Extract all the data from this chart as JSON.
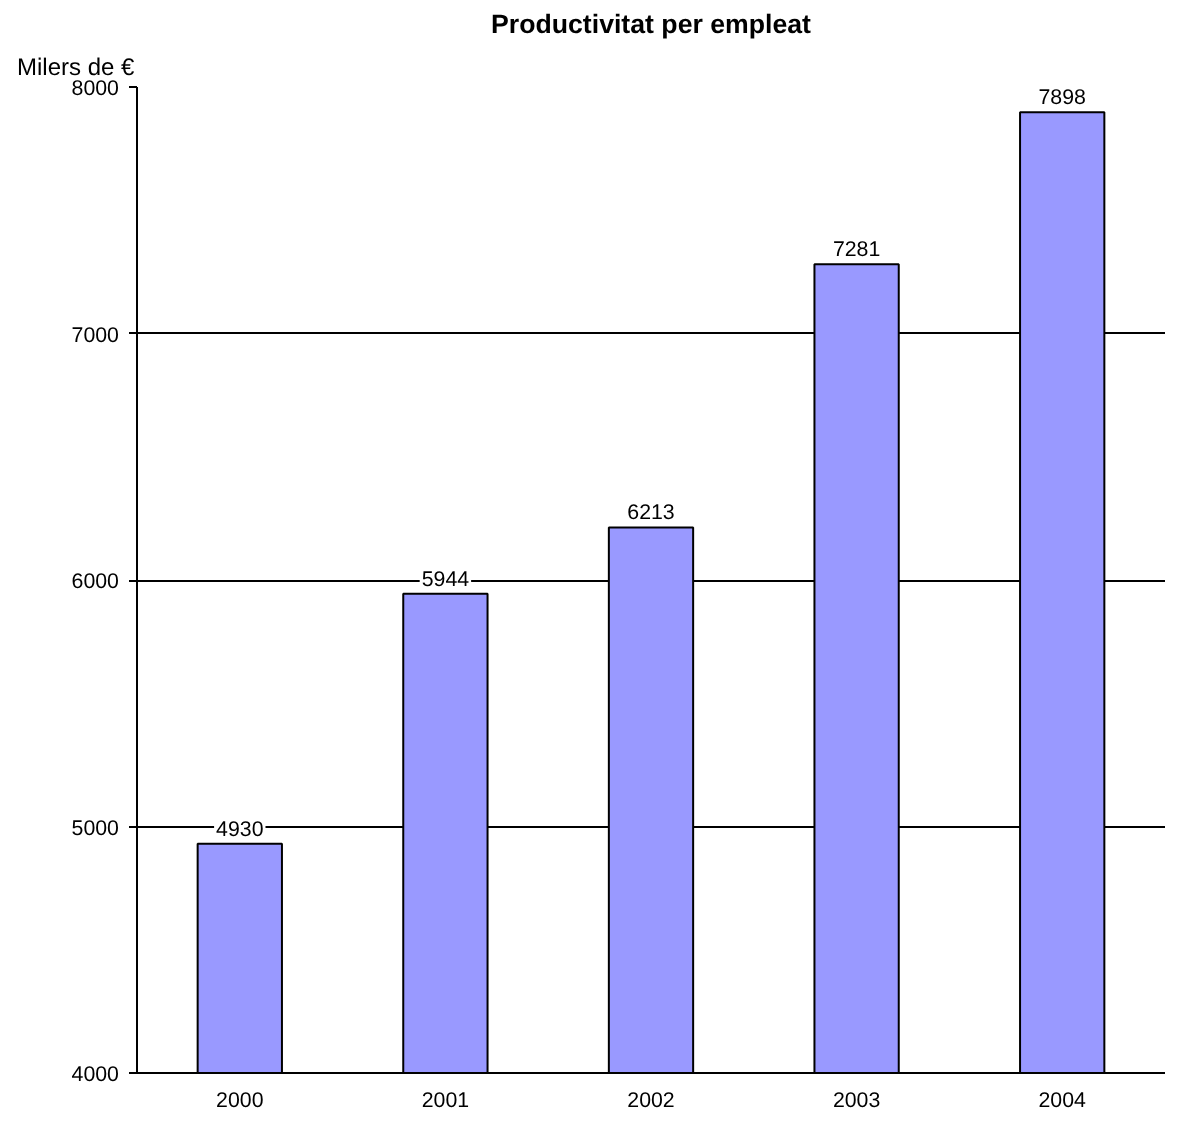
{
  "chart_data": {
    "type": "bar",
    "title": "Productivitat per empleat",
    "ylabel": "Milers de €",
    "categories": [
      "2000",
      "2001",
      "2002",
      "2003",
      "2004"
    ],
    "values": [
      4930,
      5944,
      6213,
      7281,
      7898
    ],
    "color": "#9999ff",
    "ylim": [
      4000,
      8000
    ],
    "yticks": [
      4000,
      5000,
      6000,
      7000,
      8000
    ],
    "grid": "y",
    "data_labels": true
  }
}
